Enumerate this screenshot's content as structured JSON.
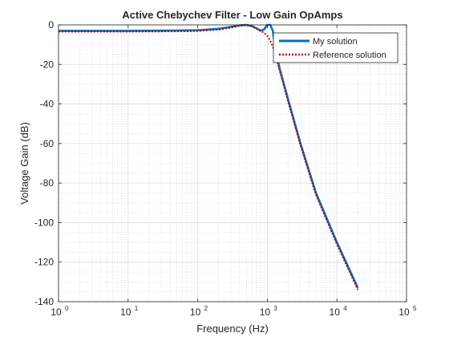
{
  "chart_data": {
    "type": "line",
    "title": "Active Chebychev Filter - Low Gain OpAmps",
    "xlabel": "Frequency (Hz)",
    "ylabel": "Voltage Gain (dB)",
    "xscale": "log",
    "xlim": [
      1,
      100000
    ],
    "ylim": [
      -140,
      0
    ],
    "grid": true,
    "minor_grid": true,
    "legend_position": "top-right",
    "x_ticks": [
      {
        "value": 1,
        "base": "10",
        "exp": "0"
      },
      {
        "value": 10,
        "base": "10",
        "exp": "1"
      },
      {
        "value": 100,
        "base": "10",
        "exp": "2"
      },
      {
        "value": 1000,
        "base": "10",
        "exp": "3"
      },
      {
        "value": 10000,
        "base": "10",
        "exp": "4"
      },
      {
        "value": 100000,
        "base": "10",
        "exp": "5"
      }
    ],
    "y_ticks": [
      {
        "value": 0,
        "label": "0"
      },
      {
        "value": -20,
        "label": "-20"
      },
      {
        "value": -40,
        "label": "-40"
      },
      {
        "value": -60,
        "label": "-60"
      },
      {
        "value": -80,
        "label": "-80"
      },
      {
        "value": -100,
        "label": "-100"
      },
      {
        "value": -120,
        "label": "-120"
      },
      {
        "value": -140,
        "label": "-140"
      }
    ],
    "series": [
      {
        "name": "My solution",
        "color": "#0072BD",
        "style": "solid",
        "x": [
          1,
          10,
          50,
          100,
          200,
          300,
          400,
          500,
          600,
          700,
          800,
          900,
          1000,
          1100,
          1200,
          1300,
          1500,
          2000,
          3000,
          5000,
          10000,
          20000
        ],
        "y": [
          -3.0,
          -3.0,
          -2.9,
          -2.7,
          -2.0,
          -1.0,
          -0.2,
          0.0,
          -0.6,
          -1.8,
          -2.9,
          -2.3,
          0.0,
          0.0,
          -3.0,
          -12.0,
          -22.0,
          -38.0,
          -60.0,
          -85.0,
          -110.0,
          -133.0
        ]
      },
      {
        "name": "Reference solution",
        "color": "#C00000",
        "style": "dotted",
        "x": [
          1,
          10,
          50,
          100,
          200,
          300,
          400,
          500,
          600,
          700,
          800,
          900,
          1000,
          1100,
          1200,
          1300,
          1500,
          2000,
          3000,
          5000,
          10000,
          20000
        ],
        "y": [
          -3.4,
          -3.4,
          -3.3,
          -3.1,
          -2.4,
          -1.4,
          -0.5,
          -0.2,
          -0.7,
          -1.9,
          -3.1,
          -4.0,
          -5.5,
          -8.0,
          -11.0,
          -15.0,
          -23.0,
          -39.0,
          -61.0,
          -86.0,
          -111.0,
          -134.0
        ]
      }
    ]
  }
}
